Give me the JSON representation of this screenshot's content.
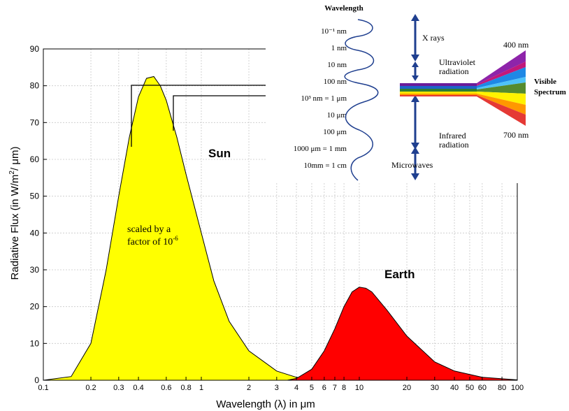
{
  "chart_data": {
    "type": "area",
    "title": "",
    "xlabel": "Wavelength (λ) in μm",
    "ylabel_main": "Radiative Flux (in W/m",
    "ylabel_sup": "2",
    "ylabel_end": "/ μm)",
    "x_scale": "log",
    "xlim": [
      0.1,
      100
    ],
    "ylim": [
      0,
      90
    ],
    "grid": true,
    "x_ticks": [
      {
        "v": 0.1,
        "label": "0.1"
      },
      {
        "v": 0.2,
        "label": "0.2"
      },
      {
        "v": 0.3,
        "label": "0.3"
      },
      {
        "v": 0.4,
        "label": "0.4"
      },
      {
        "v": 0.6,
        "label": "0.6"
      },
      {
        "v": 0.8,
        "label": "0.8"
      },
      {
        "v": 1,
        "label": "1"
      },
      {
        "v": 2,
        "label": "2"
      },
      {
        "v": 3,
        "label": "3"
      },
      {
        "v": 4,
        "label": "4"
      },
      {
        "v": 5,
        "label": "5"
      },
      {
        "v": 6,
        "label": "6"
      },
      {
        "v": 7,
        "label": "7"
      },
      {
        "v": 8,
        "label": "8"
      },
      {
        "v": 10,
        "label": "10"
      },
      {
        "v": 20,
        "label": "20"
      },
      {
        "v": 30,
        "label": "30"
      },
      {
        "v": 40,
        "label": "40"
      },
      {
        "v": 50,
        "label": "50"
      },
      {
        "v": 60,
        "label": "60"
      },
      {
        "v": 80,
        "label": "80"
      },
      {
        "v": 100,
        "label": "100"
      }
    ],
    "y_ticks": [
      {
        "v": 0,
        "label": "0"
      },
      {
        "v": 10,
        "label": "10"
      },
      {
        "v": 20,
        "label": "20"
      },
      {
        "v": 30,
        "label": "30"
      },
      {
        "v": 40,
        "label": "40"
      },
      {
        "v": 50,
        "label": "50"
      },
      {
        "v": 60,
        "label": "60"
      },
      {
        "v": 70,
        "label": "70"
      },
      {
        "v": 80,
        "label": "80"
      },
      {
        "v": 90,
        "label": "90"
      }
    ],
    "series": [
      {
        "name": "Sun",
        "color": "#ffff00",
        "points": [
          [
            0.1,
            0
          ],
          [
            0.15,
            1
          ],
          [
            0.2,
            10
          ],
          [
            0.25,
            30
          ],
          [
            0.3,
            50
          ],
          [
            0.35,
            66
          ],
          [
            0.4,
            77
          ],
          [
            0.45,
            82
          ],
          [
            0.5,
            82.5
          ],
          [
            0.55,
            80
          ],
          [
            0.6,
            76
          ],
          [
            0.7,
            66
          ],
          [
            0.8,
            56
          ],
          [
            1,
            40
          ],
          [
            1.2,
            27
          ],
          [
            1.5,
            16
          ],
          [
            2,
            8
          ],
          [
            3,
            2.5
          ],
          [
            4,
            0.8
          ],
          [
            5,
            0.3
          ],
          [
            6,
            0
          ]
        ]
      },
      {
        "name": "Earth",
        "color": "#ff0000",
        "points": [
          [
            3.5,
            0
          ],
          [
            4,
            0.5
          ],
          [
            5,
            3
          ],
          [
            6,
            8
          ],
          [
            7,
            14
          ],
          [
            8,
            20
          ],
          [
            9,
            24
          ],
          [
            10,
            25.3
          ],
          [
            11,
            25
          ],
          [
            12,
            24
          ],
          [
            15,
            19
          ],
          [
            20,
            12
          ],
          [
            30,
            5
          ],
          [
            40,
            2.5
          ],
          [
            60,
            0.8
          ],
          [
            100,
            0.1
          ]
        ]
      }
    ],
    "annotations": {
      "sun_label": "Sun",
      "earth_label": "Earth",
      "scale_line1": "scaled by a",
      "scale_line2": "factor of 10",
      "scale_sup": "-6"
    }
  },
  "inset": {
    "title": "Wavelength",
    "scale_labels": [
      "10⁻¹ nm",
      "1 nm",
      "10 nm",
      "100 nm",
      "10³ nm = 1 μm",
      "10 μm",
      "100 μm",
      "1000 μm = 1 mm",
      "10mm = 1 cm"
    ],
    "x_rays": "X rays",
    "uv_line1": "Ultraviolet",
    "uv_line2": "radiation",
    "ir_line1": "Infrared",
    "ir_line2": "radiation",
    "microwaves": "Microwaves",
    "nm400": "400 nm",
    "nm700": "700 nm",
    "visible_line1": "Visible",
    "visible_line2": "Spectrum"
  }
}
